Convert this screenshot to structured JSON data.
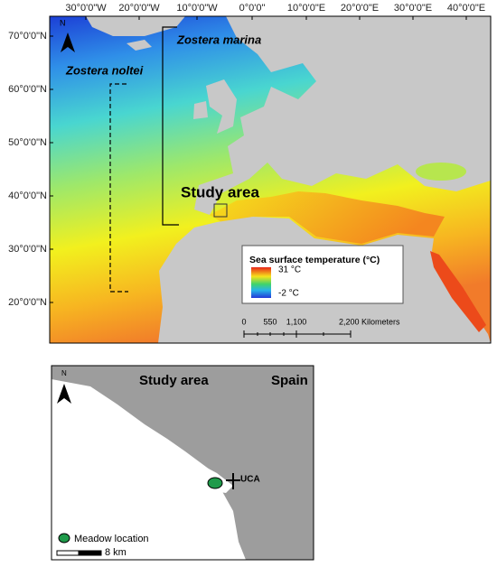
{
  "overview_map": {
    "lon_labels": [
      "30°0'0\"W",
      "20°0'0\"W",
      "10°0'0\"W",
      "0°0'0\"",
      "10°0'0\"E",
      "20°0'0\"E",
      "30°0'0\"E",
      "40°0'0\"E"
    ],
    "lat_labels": [
      "70°0'0\"N",
      "60°0'0\"N",
      "50°0'0\"N",
      "40°0'0\"N",
      "30°0'0\"N",
      "20°0'0\"N"
    ],
    "north": "N",
    "species": [
      "Zostera marina",
      "Zostera noltei"
    ],
    "study_area": "Study area",
    "legend": {
      "title": "Sea surface temperature (°C)",
      "high": "31 °C",
      "low": "-2 °C"
    },
    "scale": [
      "0",
      "550",
      "1,100",
      "2,200 Kilometers"
    ]
  },
  "detail_map": {
    "north": "N",
    "title": "Study area",
    "country": "Spain",
    "site": "UCA",
    "legend": "Meadow location",
    "scale": "8 km"
  }
}
